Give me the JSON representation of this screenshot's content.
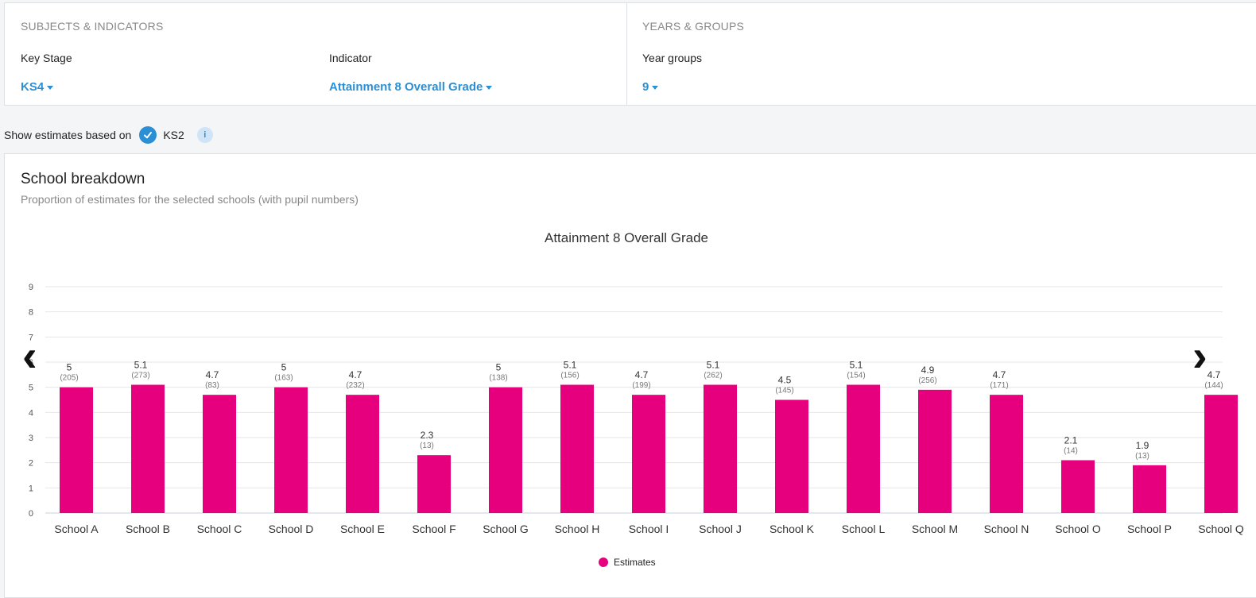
{
  "filters": {
    "subjects_title": "SUBJECTS & INDICATORS",
    "key_stage_label": "Key Stage",
    "key_stage_value": "KS4",
    "indicator_label": "Indicator",
    "indicator_value": "Attainment 8 Overall Grade",
    "years_title": "YEARS & GROUPS",
    "year_groups_label": "Year groups",
    "year_groups_value": "9"
  },
  "estimates": {
    "label": "Show estimates based on",
    "checkbox_label": "KS2",
    "info": "i"
  },
  "card": {
    "title": "School breakdown",
    "subtitle": "Proportion of estimates for the selected schools (with pupil numbers)"
  },
  "nav": {
    "prev": "‹",
    "next": "›"
  },
  "colors": {
    "accent": "#2b8fd6",
    "bar": "#e6007e"
  },
  "chart_data": {
    "type": "bar",
    "title": "Attainment 8 Overall Grade",
    "xlabel": "",
    "ylabel": "",
    "ylim": [
      0,
      9
    ],
    "yticks": [
      0,
      1,
      2,
      3,
      4,
      5,
      6,
      7,
      8,
      9
    ],
    "grid": true,
    "legend_placement": "bottom",
    "categories": [
      "School A",
      "School B",
      "School C",
      "School D",
      "School E",
      "School F",
      "School G",
      "School H",
      "School I",
      "School J",
      "School K",
      "School L",
      "School M",
      "School N",
      "School O",
      "School P",
      "School Q"
    ],
    "series": [
      {
        "name": "Estimates",
        "values": [
          5,
          5.1,
          4.7,
          5,
          4.7,
          2.3,
          5,
          5.1,
          4.7,
          5.1,
          4.5,
          5.1,
          4.9,
          4.7,
          2.1,
          1.9,
          4.7
        ],
        "pupils": [
          205,
          273,
          83,
          163,
          232,
          13,
          138,
          156,
          199,
          262,
          145,
          154,
          256,
          171,
          14,
          13,
          144
        ]
      }
    ]
  }
}
